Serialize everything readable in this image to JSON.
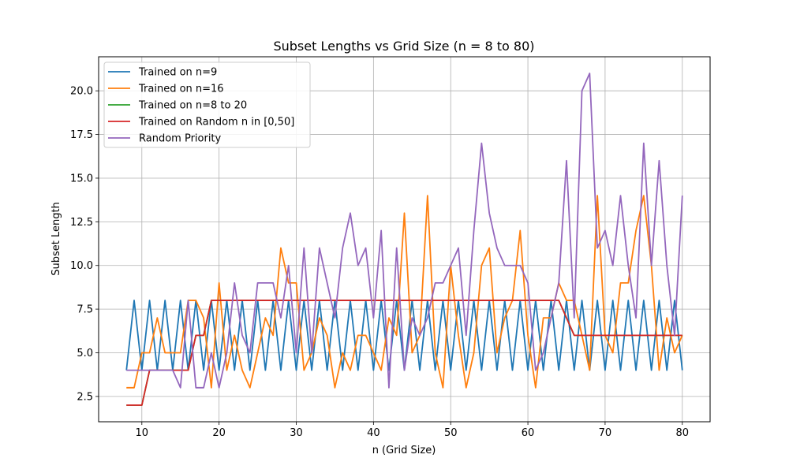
{
  "chart_data": {
    "type": "line",
    "title": "Subset Lengths vs Grid Size (n = 8 to 80)",
    "xlabel": "n (Grid Size)",
    "ylabel": "Subset Length",
    "xlim": [
      4.4,
      83.6
    ],
    "ylim": [
      1.05,
      21.95
    ],
    "xticks": [
      10,
      20,
      30,
      40,
      50,
      60,
      70,
      80
    ],
    "yticks": [
      2.5,
      5.0,
      7.5,
      10.0,
      12.5,
      15.0,
      17.5,
      20.0
    ],
    "xtick_labels": [
      "10",
      "20",
      "30",
      "40",
      "50",
      "60",
      "70",
      "80"
    ],
    "ytick_labels": [
      "2.5",
      "5.0",
      "7.5",
      "10.0",
      "12.5",
      "15.0",
      "17.5",
      "20.0"
    ],
    "grid": true,
    "legend_position": "upper-left",
    "x": [
      8,
      9,
      10,
      11,
      12,
      13,
      14,
      15,
      16,
      17,
      18,
      19,
      20,
      21,
      22,
      23,
      24,
      25,
      26,
      27,
      28,
      29,
      30,
      31,
      32,
      33,
      34,
      35,
      36,
      37,
      38,
      39,
      40,
      41,
      42,
      43,
      44,
      45,
      46,
      47,
      48,
      49,
      50,
      51,
      52,
      53,
      54,
      55,
      56,
      57,
      58,
      59,
      60,
      61,
      62,
      63,
      64,
      65,
      66,
      67,
      68,
      69,
      70,
      71,
      72,
      73,
      74,
      75,
      76,
      77,
      78,
      79,
      80
    ],
    "series": [
      {
        "name": "Trained on n=9",
        "color": "#1f77b4",
        "values": [
          4,
          8,
          4,
          8,
          4,
          8,
          4,
          8,
          4,
          8,
          4,
          8,
          4,
          8,
          4,
          8,
          4,
          8,
          4,
          8,
          4,
          8,
          4,
          8,
          4,
          8,
          4,
          8,
          4,
          8,
          4,
          8,
          4,
          8,
          4,
          8,
          4,
          8,
          4,
          8,
          4,
          8,
          4,
          8,
          4,
          8,
          4,
          8,
          4,
          8,
          4,
          8,
          4,
          8,
          4,
          8,
          4,
          8,
          4,
          8,
          4,
          8,
          4,
          8,
          4,
          8,
          4,
          8,
          4,
          8,
          4,
          8,
          4
        ]
      },
      {
        "name": "Trained on n=16",
        "color": "#ff7f0e",
        "values": [
          3,
          3,
          5,
          5,
          7,
          5,
          5,
          5,
          8,
          8,
          7,
          3,
          9,
          4,
          6,
          4,
          3,
          5,
          7,
          6,
          11,
          9,
          9,
          4,
          5,
          7,
          6,
          3,
          5,
          4,
          6,
          6,
          5,
          4,
          7,
          6,
          13,
          5,
          6,
          14,
          5,
          3,
          10,
          6,
          3,
          5,
          10,
          11,
          5,
          7,
          8,
          12,
          6,
          3,
          7,
          7,
          9,
          8,
          8,
          6,
          4,
          14,
          6,
          5,
          9,
          9,
          12,
          14,
          10,
          4,
          7,
          5,
          6
        ]
      },
      {
        "name": "Trained on n=8 to 20",
        "color": "#2ca02c",
        "values": [
          2,
          2,
          2,
          4,
          4,
          4,
          4,
          4,
          4,
          6,
          6,
          8,
          8,
          8,
          8,
          8,
          8,
          8,
          8,
          8,
          8,
          8,
          8,
          8,
          8,
          8,
          8,
          8,
          8,
          8,
          8,
          8,
          8,
          8,
          8,
          8,
          8,
          8,
          8,
          8,
          8,
          8,
          8,
          8,
          8,
          8,
          8,
          8,
          8,
          8,
          8,
          8,
          8,
          8,
          8,
          8,
          8,
          7,
          6,
          6,
          6,
          6,
          6,
          6,
          6,
          6,
          6,
          6,
          6,
          6,
          6,
          6,
          6
        ]
      },
      {
        "name": "Trained on Random n in [0,50]",
        "color": "#d62728",
        "values": [
          2,
          2,
          2,
          4,
          4,
          4,
          4,
          4,
          4,
          6,
          6,
          8,
          8,
          8,
          8,
          8,
          8,
          8,
          8,
          8,
          8,
          8,
          8,
          8,
          8,
          8,
          8,
          8,
          8,
          8,
          8,
          8,
          8,
          8,
          8,
          8,
          8,
          8,
          8,
          8,
          8,
          8,
          8,
          8,
          8,
          8,
          8,
          8,
          8,
          8,
          8,
          8,
          8,
          8,
          8,
          8,
          8,
          7,
          6,
          6,
          6,
          6,
          6,
          6,
          6,
          6,
          6,
          6,
          6,
          6,
          6,
          6,
          6
        ]
      },
      {
        "name": "Random Priority",
        "color": "#9467bd",
        "values": [
          4,
          4,
          4,
          4,
          4,
          4,
          4,
          3,
          8,
          3,
          3,
          5,
          3,
          5,
          9,
          6,
          5,
          9,
          9,
          9,
          7,
          10,
          5,
          11,
          5,
          11,
          9,
          7,
          11,
          13,
          10,
          11,
          7,
          12,
          3,
          11,
          4,
          7,
          6,
          7,
          9,
          9,
          10,
          11,
          6,
          12,
          17,
          13,
          11,
          10,
          10,
          10,
          9,
          4,
          5,
          7,
          9,
          16,
          7,
          20,
          21,
          11,
          12,
          10,
          14,
          10,
          7,
          17,
          10,
          16,
          10,
          6,
          14
        ]
      }
    ]
  }
}
